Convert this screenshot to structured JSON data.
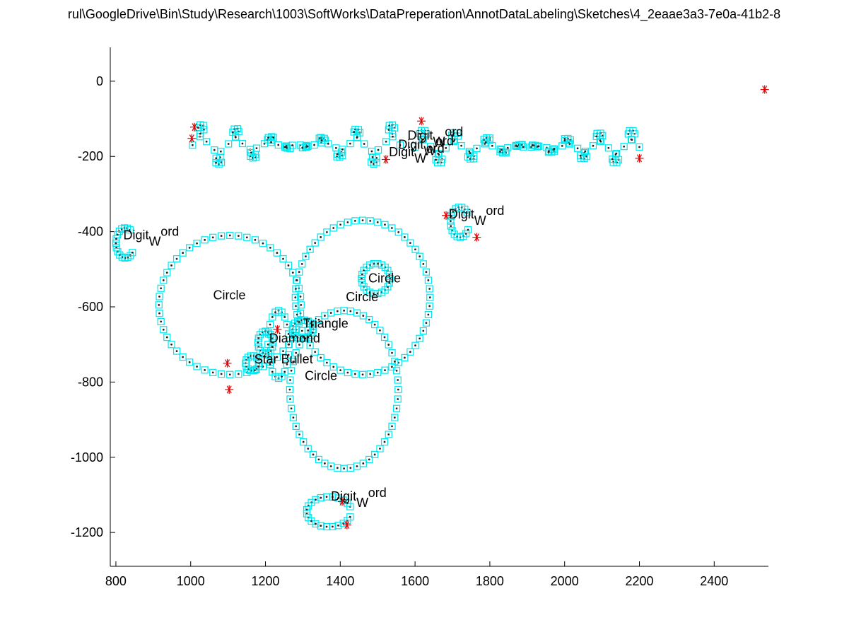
{
  "window": {
    "title": "rul\\GoogleDrive\\Bin\\Study\\Research\\1003\\SoftWorks\\DataPreperation\\AnnotDataLabeling\\Sketches\\4_2eaae3a3-7e0a-41b2-8"
  },
  "chart_data": {
    "type": "scatter",
    "title": "rul\\GoogleDrive\\Bin\\Study\\Research\\1003\\SoftWorks\\DataPreperation\\AnnotDataLabeling\\Sketches\\4_2eaae3a3-7e0a-41b2-8",
    "xlabel": "",
    "ylabel": "",
    "xlim": [
      785,
      2545
    ],
    "ylim": [
      -1290,
      90
    ],
    "x_ticks": [
      "800",
      "1000",
      "1200",
      "1400",
      "1600",
      "1800",
      "2000",
      "2200",
      "2400"
    ],
    "y_ticks": [
      "0",
      "-200",
      "-400",
      "-600",
      "-800",
      "-1000",
      "-1200"
    ],
    "grid": false,
    "colors": {
      "marker_box": "#00e5ee",
      "point": "#222222",
      "endpoint": "#e00000",
      "axis": "#000000"
    },
    "strokes": [
      {
        "name": "big-circle-left",
        "kind": "ellipse",
        "cx": 1105,
        "cy": -595,
        "rx": 190,
        "ry": 185,
        "n": 52
      },
      {
        "name": "big-circle-right",
        "kind": "ellipse",
        "cx": 1460,
        "cy": -575,
        "rx": 180,
        "ry": 205,
        "n": 56
      },
      {
        "name": "big-circle-bottom",
        "kind": "ellipse",
        "cx": 1410,
        "cy": -820,
        "rx": 145,
        "ry": 210,
        "n": 52
      },
      {
        "name": "small-circle-mid",
        "kind": "ellipse",
        "cx": 1235,
        "cy": -700,
        "rx": 28,
        "ry": 90,
        "n": 20
      },
      {
        "name": "small-circle-right",
        "kind": "ellipse",
        "cx": 1495,
        "cy": -525,
        "rx": 38,
        "ry": 40,
        "n": 22
      },
      {
        "name": "triangle",
        "kind": "ellipse",
        "cx": 1300,
        "cy": -660,
        "rx": 28,
        "ry": 25,
        "n": 18
      },
      {
        "name": "diamond",
        "kind": "ellipse",
        "cx": 1200,
        "cy": -695,
        "rx": 20,
        "ry": 30,
        "n": 16
      },
      {
        "name": "star-bullet",
        "kind": "ellipse",
        "cx": 1165,
        "cy": -750,
        "rx": 18,
        "ry": 20,
        "n": 14
      },
      {
        "name": "digit-word-bottom",
        "kind": "arc",
        "cx": 1370,
        "cy": -1145,
        "rx": 60,
        "ry": 40,
        "a0": 20,
        "a1": 340,
        "n": 22
      },
      {
        "name": "digit-word-left",
        "kind": "arc",
        "cx": 825,
        "cy": -430,
        "rx": 25,
        "ry": 40,
        "a0": 60,
        "a1": 320,
        "n": 16
      },
      {
        "name": "digit-word-right",
        "kind": "arc",
        "cx": 1720,
        "cy": -375,
        "rx": 25,
        "ry": 40,
        "a0": 40,
        "a1": 330,
        "n": 16
      },
      {
        "name": "handwriting-left",
        "kind": "wave",
        "x0": 1005,
        "x1": 1560,
        "y": -170,
        "amp": 55,
        "freq": 6,
        "n": 90
      },
      {
        "name": "handwriting-right",
        "kind": "wave",
        "x0": 1600,
        "x1": 2200,
        "y": -175,
        "amp": 45,
        "freq": 7,
        "n": 100
      }
    ],
    "endpoints": [
      {
        "x": 2535,
        "y": -22
      },
      {
        "x": 1010,
        "y": -122
      },
      {
        "x": 1003,
        "y": -152
      },
      {
        "x": 1617,
        "y": -106
      },
      {
        "x": 1522,
        "y": -208
      },
      {
        "x": 2200,
        "y": -205
      },
      {
        "x": 1683,
        "y": -357
      },
      {
        "x": 1765,
        "y": -415
      },
      {
        "x": 1098,
        "y": -750
      },
      {
        "x": 1103,
        "y": -820
      },
      {
        "x": 1232,
        "y": -660
      },
      {
        "x": 1405,
        "y": -1118
      },
      {
        "x": 1418,
        "y": -1180
      }
    ],
    "annotations": [
      {
        "text": "Digit",
        "sub": "W",
        "rest": "ord",
        "x": 1580,
        "y": -155
      },
      {
        "text": "Digit",
        "sub": "W",
        "rest": "ord",
        "x": 1555,
        "y": -180
      },
      {
        "text": "Digit",
        "sub": "W",
        "rest": "ord",
        "x": 1530,
        "y": -200
      },
      {
        "text": "Digit",
        "sub": "W",
        "rest": "ord",
        "x": 1690,
        "y": -365
      },
      {
        "text": "Digit",
        "sub": "W",
        "rest": "ord",
        "x": 820,
        "y": -420
      },
      {
        "text": "Digit",
        "sub": "W",
        "rest": "ord",
        "x": 1375,
        "y": -1115
      },
      {
        "text": "Circle",
        "x": 1060,
        "y": -580
      },
      {
        "text": "Circle",
        "x": 1475,
        "y": -535
      },
      {
        "text": "Circle",
        "x": 1415,
        "y": -585
      },
      {
        "text": "Triangle",
        "x": 1300,
        "y": -655
      },
      {
        "text": "Diamond",
        "x": 1210,
        "y": -695
      },
      {
        "text": "Star Bullet",
        "x": 1170,
        "y": -750
      },
      {
        "text": "Circle",
        "x": 1305,
        "y": -795
      }
    ]
  }
}
